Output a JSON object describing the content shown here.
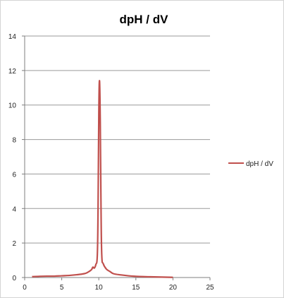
{
  "chart_data": {
    "type": "scatter",
    "title": "dpH / dV",
    "xlabel": "",
    "ylabel": "",
    "xlim": [
      0,
      25
    ],
    "ylim": [
      0,
      14
    ],
    "x_ticks": [
      0,
      5,
      10,
      15,
      20,
      25
    ],
    "y_ticks": [
      0,
      2,
      4,
      6,
      8,
      10,
      12,
      14
    ],
    "grid": "horizontal",
    "legend_position": "right",
    "series": [
      {
        "name": "dpH / dV",
        "color": "#c0504d",
        "line": "smooth",
        "points": [
          [
            1,
            0.05
          ],
          [
            2,
            0.07
          ],
          [
            3,
            0.08
          ],
          [
            4,
            0.08
          ],
          [
            5,
            0.1
          ],
          [
            6,
            0.12
          ],
          [
            7,
            0.16
          ],
          [
            8,
            0.22
          ],
          [
            8.5,
            0.3
          ],
          [
            9,
            0.45
          ],
          [
            9.2,
            0.6
          ],
          [
            9.4,
            0.55
          ],
          [
            9.6,
            0.75
          ],
          [
            9.8,
            1.3
          ],
          [
            9.9,
            4.0
          ],
          [
            10,
            9.5
          ],
          [
            10.1,
            11.4
          ],
          [
            10.2,
            9.0
          ],
          [
            10.3,
            4.0
          ],
          [
            10.4,
            1.3
          ],
          [
            10.6,
            0.8
          ],
          [
            11,
            0.5
          ],
          [
            11.5,
            0.35
          ],
          [
            12,
            0.22
          ],
          [
            13,
            0.15
          ],
          [
            14,
            0.1
          ],
          [
            15,
            0.07
          ],
          [
            16,
            0.05
          ],
          [
            17,
            0.04
          ],
          [
            18,
            0.03
          ],
          [
            19,
            0.02
          ],
          [
            20,
            0.01
          ]
        ]
      }
    ]
  }
}
